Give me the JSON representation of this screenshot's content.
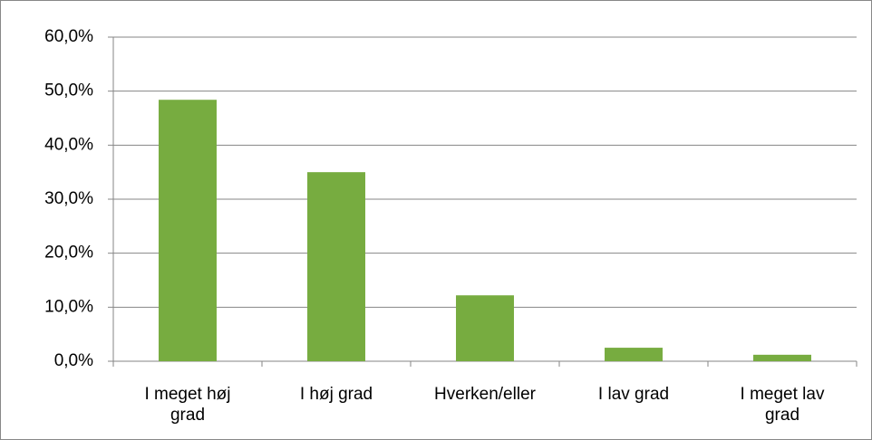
{
  "chart_data": {
    "type": "bar",
    "categories": [
      "I meget høj grad",
      "I høj grad",
      "Hverken/eller",
      "I lav grad",
      "I meget lav grad"
    ],
    "values": [
      48.4,
      35.0,
      12.2,
      2.5,
      1.2
    ],
    "color": "#77ac40",
    "ylim": [
      0,
      60
    ],
    "yticks": [
      {
        "value": 0,
        "label": "0,0%"
      },
      {
        "value": 10,
        "label": "10,0%"
      },
      {
        "value": 20,
        "label": "20,0%"
      },
      {
        "value": 30,
        "label": "30,0%"
      },
      {
        "value": 40,
        "label": "40,0%"
      },
      {
        "value": 50,
        "label": "50,0%"
      },
      {
        "value": 60,
        "label": "60,0%"
      }
    ],
    "grid": true
  }
}
